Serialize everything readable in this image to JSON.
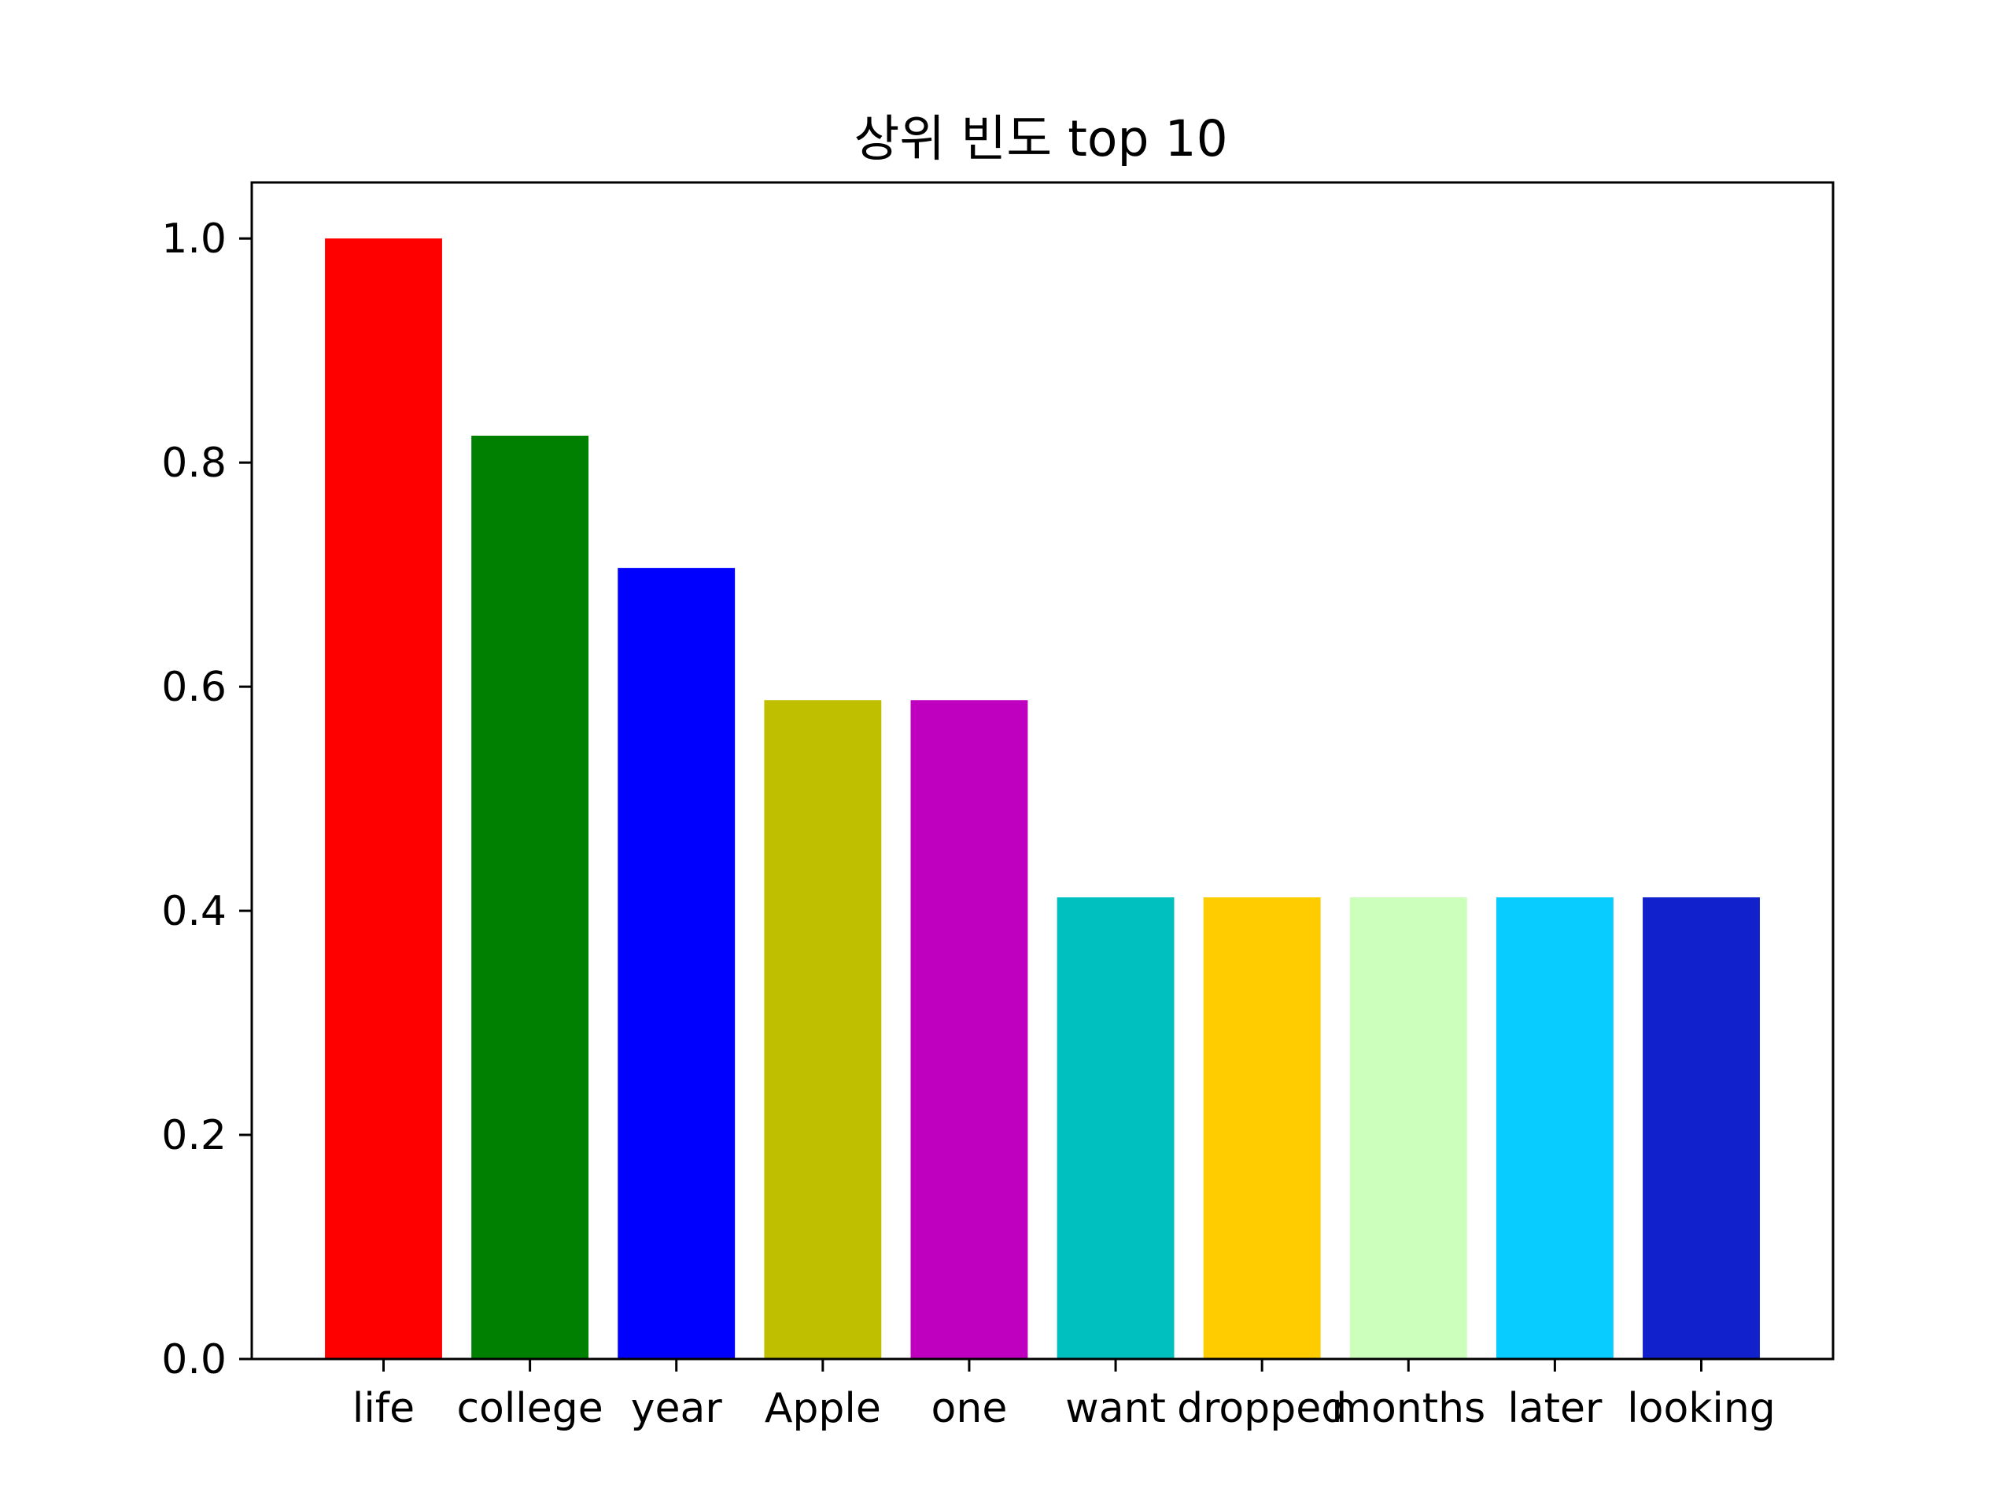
{
  "chart_data": {
    "type": "bar",
    "title": "상위 빈도 top 10",
    "xlabel": "",
    "ylabel": "",
    "categories": [
      "life",
      "college",
      "year",
      "Apple",
      "one",
      "want",
      "dropped",
      "months",
      "later",
      "looking"
    ],
    "values": [
      1.0,
      0.824,
      0.706,
      0.588,
      0.588,
      0.412,
      0.412,
      0.412,
      0.412,
      0.412
    ],
    "colors": [
      "#ff0000",
      "#008000",
      "#0000ff",
      "#bfbf00",
      "#bf00bf",
      "#00bfbf",
      "#ffcc00",
      "#ccffbb",
      "#08ccff",
      "#1122cc"
    ],
    "ylim": [
      0,
      1.05
    ],
    "yticks": [
      0.0,
      0.2,
      0.4,
      0.6,
      0.8,
      1.0
    ],
    "ytick_labels": [
      "0.0",
      "0.2",
      "0.4",
      "0.6",
      "0.8",
      "1.0"
    ],
    "grid": false,
    "legend": "none"
  }
}
